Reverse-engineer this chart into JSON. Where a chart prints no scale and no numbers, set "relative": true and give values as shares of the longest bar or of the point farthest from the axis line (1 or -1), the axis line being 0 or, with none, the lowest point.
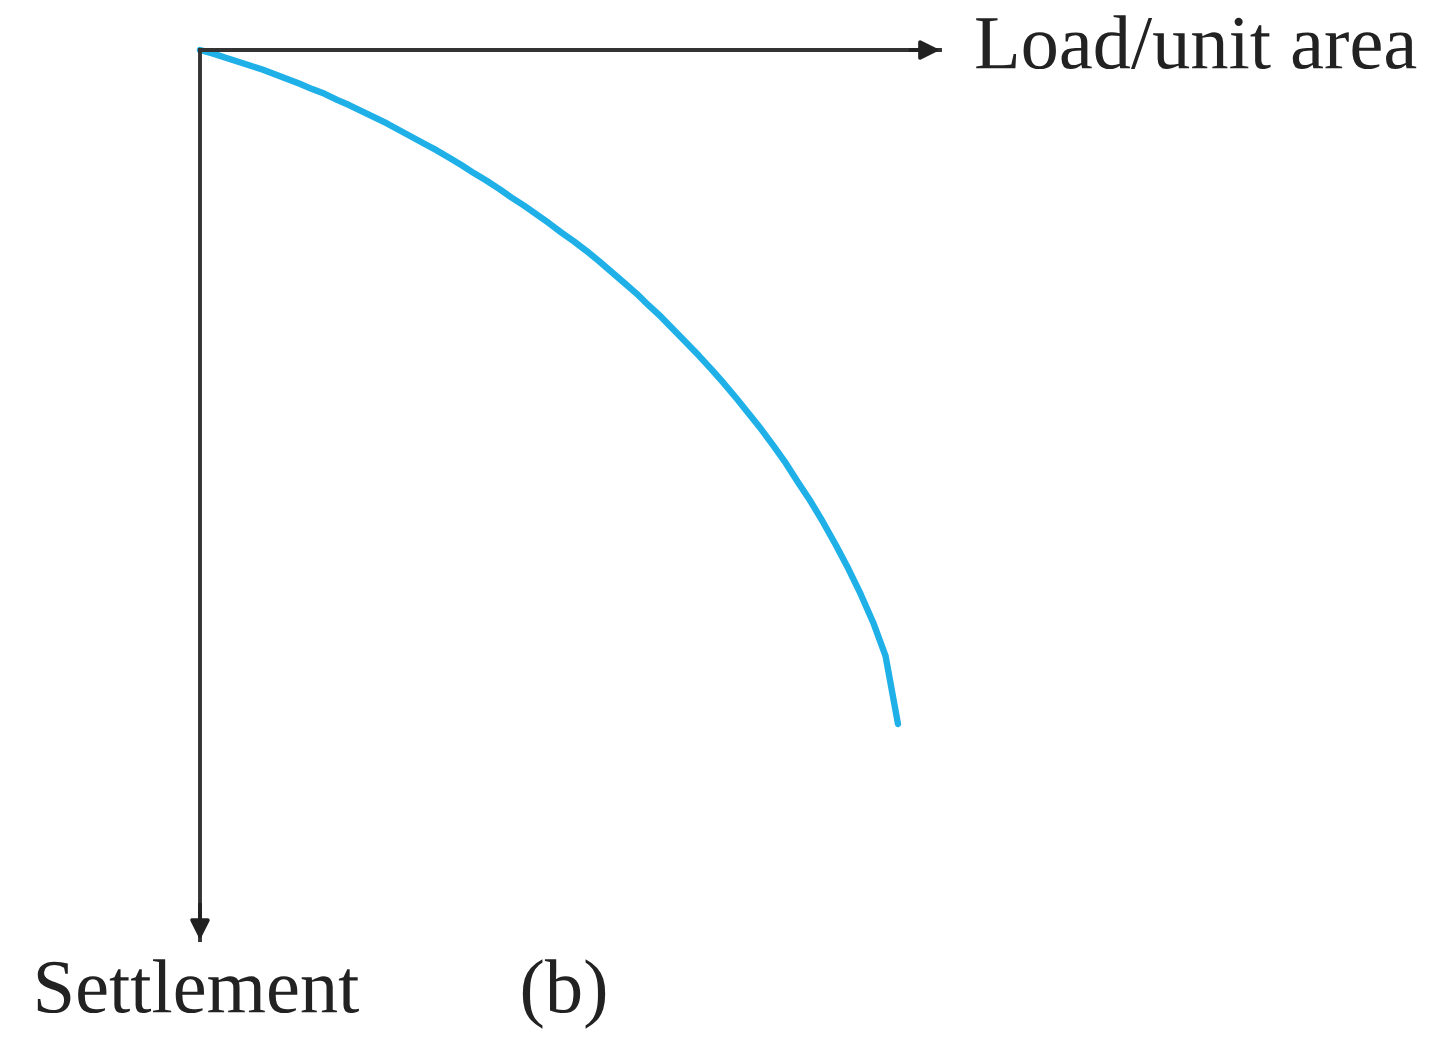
{
  "chart_data": {
    "type": "line",
    "xlabel": "Load/unit area",
    "ylabel": "Settlement",
    "annotations": [
      "(b)"
    ],
    "relative": true,
    "categories": [
      null,
      null,
      null,
      null,
      null,
      null,
      null,
      null,
      null,
      null,
      null,
      null,
      null,
      null,
      null,
      null,
      null,
      null,
      null,
      null,
      null,
      null,
      null,
      null,
      null,
      null,
      null,
      null,
      null,
      null,
      null,
      null,
      null,
      null,
      null,
      null,
      null,
      null,
      null,
      null,
      null,
      null,
      null,
      null,
      null,
      null,
      null,
      null,
      null,
      null,
      null,
      null,
      null,
      null,
      null,
      null,
      null
    ],
    "series": [
      {
        "color": "#1fb0e8",
        "values": [
          0,
          -0.005,
          -0.011,
          -0.017,
          -0.023,
          -0.029,
          -0.036,
          -0.043,
          -0.05,
          -0.058,
          -0.065,
          -0.074,
          -0.082,
          -0.091,
          -0.1,
          -0.109,
          -0.119,
          -0.129,
          -0.139,
          -0.149,
          -0.16,
          -0.171,
          -0.183,
          -0.194,
          -0.206,
          -0.219,
          -0.231,
          -0.244,
          -0.257,
          -0.271,
          -0.284,
          -0.298,
          -0.313,
          -0.329,
          -0.345,
          -0.361,
          -0.379,
          -0.396,
          -0.415,
          -0.434,
          -0.453,
          -0.473,
          -0.494,
          -0.516,
          -0.539,
          -0.562,
          -0.587,
          -0.613,
          -0.642,
          -0.67,
          -0.701,
          -0.734,
          -0.769,
          -0.807,
          -0.849,
          -0.899,
          -1
        ]
      }
    ]
  }
}
